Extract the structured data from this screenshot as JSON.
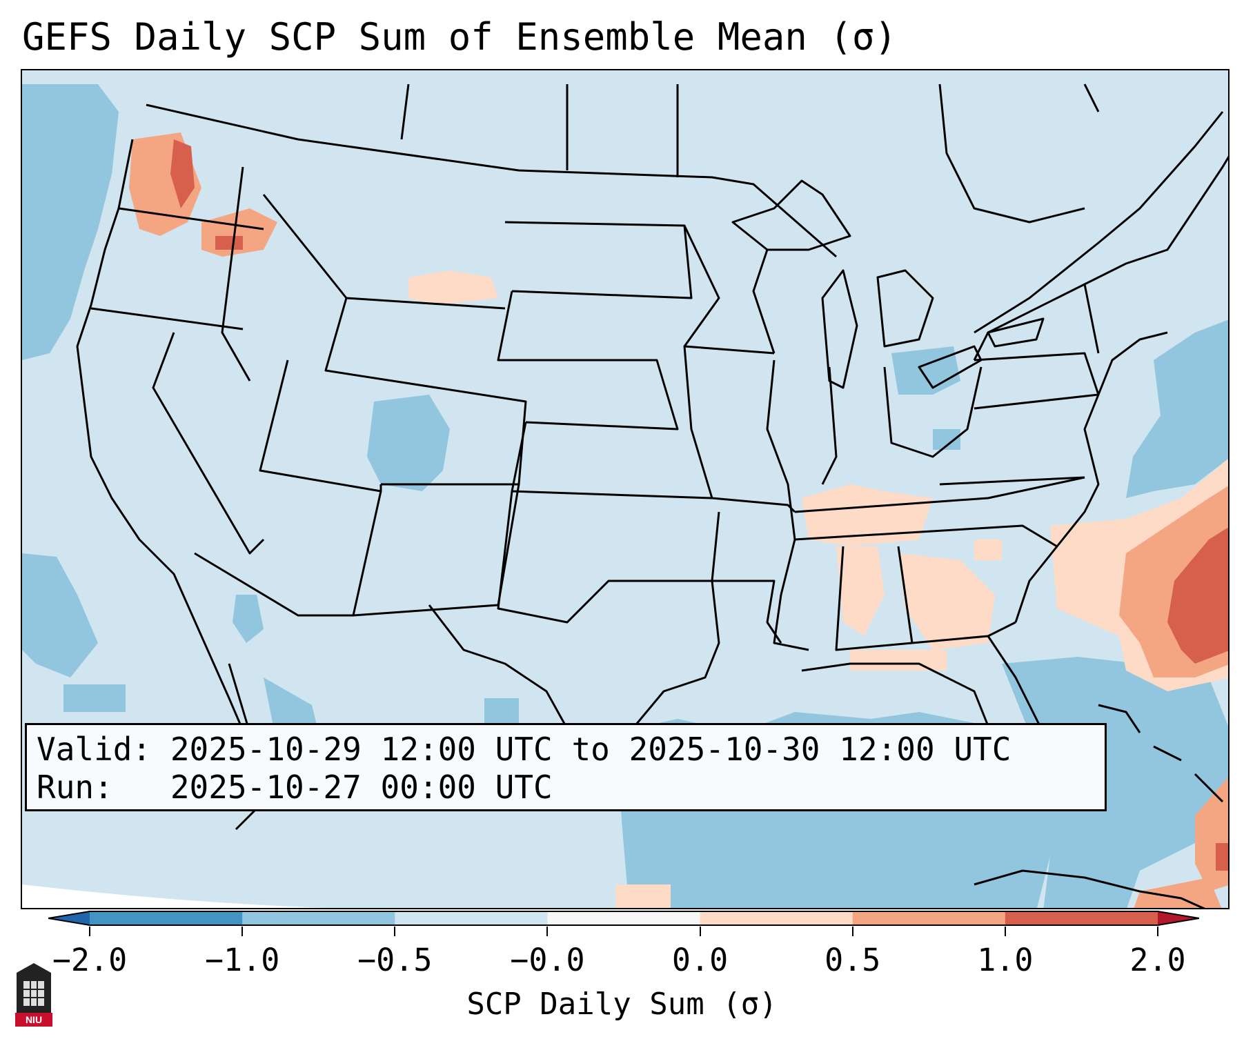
{
  "title": "GEFS Daily SCP Sum of Ensemble Mean (σ)",
  "info": {
    "valid_line": "Valid: 2025-10-29 12:00 UTC to 2025-10-30 12:00 UTC",
    "run_line": "Run:   2025-10-27 00:00 UTC"
  },
  "colorbar": {
    "label": "SCP Daily Sum (σ)",
    "ticks": [
      "−2.0",
      "−1.0",
      "−0.5",
      "−0.0",
      "0.0",
      "0.5",
      "1.0",
      "2.0"
    ],
    "colors": [
      "#4393c3",
      "#92c5de",
      "#d1e5f0",
      "#f7f7f7",
      "#fddbc7",
      "#f4a582",
      "#d6604d"
    ],
    "extend_low_color": "#2166ac",
    "extend_high_color": "#b2182b"
  },
  "logo": {
    "text": "NIU",
    "color": "#c8102e"
  }
}
